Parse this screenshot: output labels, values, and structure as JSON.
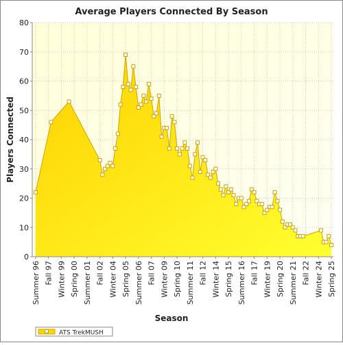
{
  "chart_data": {
    "type": "area",
    "title": "Average Players Connected By Season",
    "x_label": "Season",
    "y_label": "Players Connected",
    "x": [
      0,
      6,
      13,
      25,
      26,
      27,
      28,
      29,
      30,
      31,
      32,
      33,
      34,
      35,
      36,
      37,
      38,
      39,
      40,
      41,
      42,
      43,
      44,
      45,
      46,
      47,
      48,
      49,
      50,
      51,
      52,
      53,
      54,
      55,
      56,
      57,
      58,
      59,
      60,
      61,
      62,
      63,
      64,
      65,
      66,
      67,
      68,
      69,
      70,
      71,
      72,
      73,
      74,
      75,
      76,
      77,
      78,
      79,
      80,
      81,
      82,
      83,
      84,
      85,
      86,
      87,
      88,
      89,
      90,
      91,
      92,
      93,
      94,
      95,
      96,
      97,
      98,
      99,
      100,
      101,
      102,
      103,
      104,
      111,
      112,
      113,
      114,
      115
    ],
    "series": [
      {
        "name": "ATS TrekMUSH",
        "color": "#ffd700",
        "line_color": "#d4a000",
        "values": [
          22,
          46,
          53,
          33,
          28,
          30,
          31,
          32,
          31,
          37,
          42,
          52,
          58,
          69,
          59,
          57,
          65,
          58,
          51,
          52,
          55,
          53,
          59,
          54,
          48,
          49,
          55,
          41,
          44,
          44,
          37,
          48,
          46,
          37,
          35,
          37,
          39,
          37,
          31,
          27,
          35,
          39,
          29,
          34,
          33,
          28,
          27,
          29,
          30,
          25,
          23,
          21,
          24,
          22,
          23,
          21,
          18,
          20,
          20,
          17,
          18,
          19,
          23,
          22,
          19,
          18,
          18,
          15,
          16,
          17,
          17,
          22,
          19,
          16,
          12,
          10,
          11,
          11,
          10,
          9,
          7,
          7,
          7,
          9,
          5,
          5,
          7,
          4
        ]
      }
    ],
    "xlim": [
      -1.3,
      115.8
    ],
    "xticks": [
      {
        "value": 0,
        "label": "Summer 96"
      },
      {
        "value": 5,
        "label": "Fall 97"
      },
      {
        "value": 10,
        "label": "Winter 99"
      },
      {
        "value": 15,
        "label": "Spring 00"
      },
      {
        "value": 20,
        "label": "Summer 01"
      },
      {
        "value": 25,
        "label": "Fall 02"
      },
      {
        "value": 30,
        "label": "Winter 04"
      },
      {
        "value": 35,
        "label": "Spring 05"
      },
      {
        "value": 40,
        "label": "Summer 06"
      },
      {
        "value": 45,
        "label": "Fall 07"
      },
      {
        "value": 50,
        "label": "Winter 09"
      },
      {
        "value": 55,
        "label": "Spring 10"
      },
      {
        "value": 60,
        "label": "Summer 11"
      },
      {
        "value": 65,
        "label": "Fall 12"
      },
      {
        "value": 70,
        "label": "Winter 14"
      },
      {
        "value": 75,
        "label": "Spring 15"
      },
      {
        "value": 80,
        "label": "Summer 16"
      },
      {
        "value": 85,
        "label": "Fall 17"
      },
      {
        "value": 90,
        "label": "Winter 19"
      },
      {
        "value": 95,
        "label": "Spring 20"
      },
      {
        "value": 100,
        "label": "Summer 21"
      },
      {
        "value": 105,
        "label": "Fall 22"
      },
      {
        "value": 110,
        "label": "Winter 24"
      },
      {
        "value": 115,
        "label": "Spring 25"
      }
    ],
    "ylim": [
      0,
      80
    ],
    "yticks": [
      0,
      10,
      20,
      30,
      40,
      50,
      60,
      70,
      80
    ],
    "grid": true,
    "legend": "bottom-left"
  }
}
